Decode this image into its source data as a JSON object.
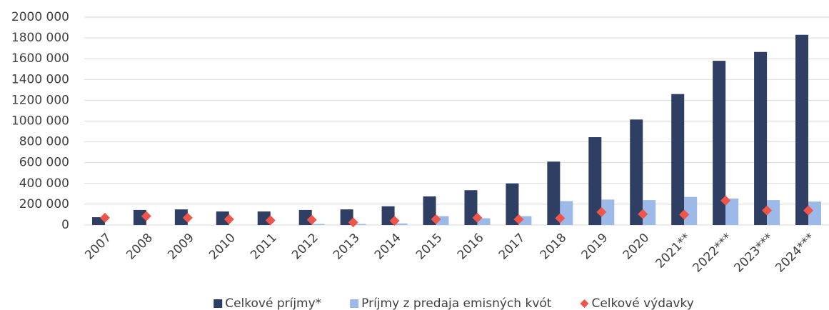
{
  "chart_data": {
    "type": "bar",
    "categories": [
      "2007",
      "2008",
      "2009",
      "2010",
      "2011",
      "2012",
      "2013",
      "2014",
      "2015",
      "2016",
      "2017",
      "2018",
      "2019",
      "2020",
      "2021**",
      "2022***",
      "2023***",
      "2024***"
    ],
    "series": [
      {
        "name": "Celkové príjmy*",
        "color": "#2e3f63",
        "values": [
          75000,
          145000,
          150000,
          130000,
          130000,
          145000,
          150000,
          180000,
          275000,
          335000,
          400000,
          610000,
          845000,
          1015000,
          1260000,
          1580000,
          1665000,
          1830000
        ]
      },
      {
        "name": "Príjmy z predaja emisných kvót",
        "color": "#9db9e8",
        "values": [
          0,
          0,
          0,
          0,
          0,
          10000,
          10000,
          15000,
          85000,
          65000,
          85000,
          230000,
          245000,
          240000,
          270000,
          255000,
          240000,
          225000
        ]
      },
      {
        "name": "Celkové výdavky",
        "color": "#f0554a",
        "marker": "diamond",
        "values": [
          70000,
          85000,
          70000,
          55000,
          45000,
          50000,
          25000,
          40000,
          55000,
          70000,
          55000,
          65000,
          125000,
          105000,
          100000,
          235000,
          140000,
          140000
        ]
      }
    ],
    "ylim": [
      0,
      2000000
    ],
    "yticks": [
      0,
      {
        "value": 200000,
        "label": "200 000"
      },
      {
        "value": 400000,
        "label": "400 000"
      },
      {
        "value": 600000,
        "label": "600 000"
      },
      {
        "value": 800000,
        "label": "800 000"
      },
      {
        "value": 1000000,
        "label": "1000 000"
      },
      {
        "value": 1200000,
        "label": "1200 000"
      },
      {
        "value": 1400000,
        "label": "1400 000"
      },
      {
        "value": 1600000,
        "label": "1600 000"
      },
      {
        "value": 1800000,
        "label": "1800 000"
      },
      {
        "value": 2000000,
        "label": "2000 000"
      }
    ],
    "grid": true,
    "legend": "bottom"
  }
}
